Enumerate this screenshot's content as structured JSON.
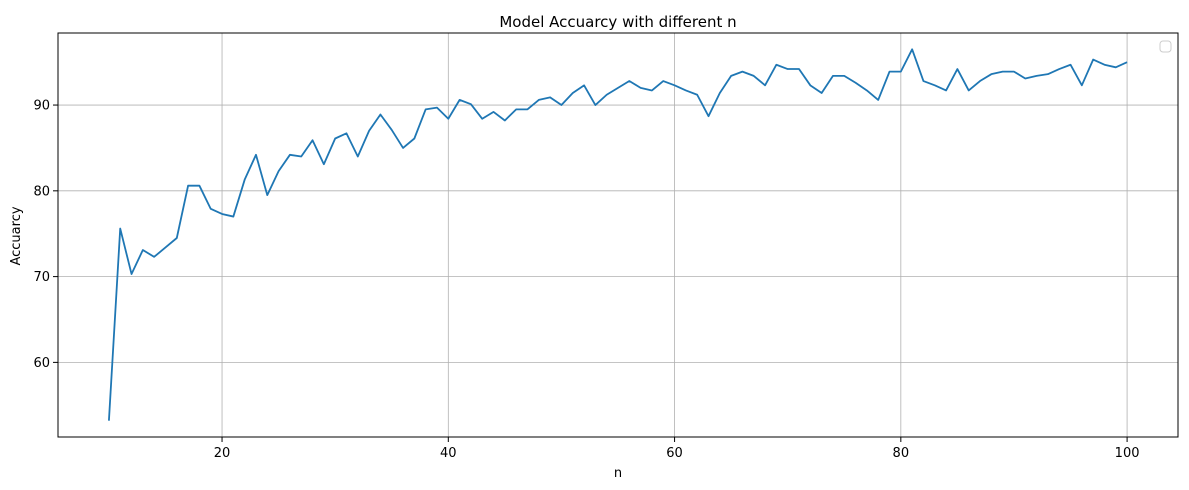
{
  "chart_data": {
    "type": "line",
    "title": "Model Accuarcy with different n",
    "xlabel": "n",
    "ylabel": "Accuarcy",
    "xlim": [
      5.5,
      104.5
    ],
    "ylim": [
      51.3,
      98.4
    ],
    "xticks": [
      20,
      40,
      60,
      80,
      100
    ],
    "yticks": [
      60,
      70,
      80,
      90
    ],
    "grid": true,
    "legend": "upper-right (empty)",
    "colors": {
      "line": "#1f77b4",
      "grid": "#b0b0b0",
      "axes": "#000000"
    },
    "series": [
      {
        "x": [
          10,
          11,
          12,
          13,
          14,
          15,
          16,
          17,
          18,
          19,
          20,
          21,
          22,
          23,
          24,
          25,
          26,
          27,
          28,
          29,
          30,
          31,
          32,
          33,
          34,
          35,
          36,
          37,
          38,
          39,
          40,
          41,
          42,
          43,
          44,
          45,
          46,
          47,
          48,
          49,
          50,
          51,
          52,
          53,
          54,
          55,
          56,
          57,
          58,
          59,
          60,
          61,
          62,
          63,
          64,
          65,
          66,
          67,
          68,
          69,
          70,
          71,
          72,
          73,
          74,
          75,
          76,
          77,
          78,
          79,
          80,
          81,
          82,
          83,
          84,
          85,
          86,
          87,
          88,
          89,
          90,
          91,
          92,
          93,
          94,
          95,
          96,
          97,
          98,
          99,
          100
        ],
        "y": [
          53.2,
          75.6,
          70.3,
          73.1,
          72.3,
          73.4,
          74.5,
          80.6,
          80.6,
          77.9,
          77.3,
          77.0,
          81.3,
          84.2,
          79.5,
          82.3,
          84.2,
          84.0,
          85.9,
          83.1,
          86.1,
          86.7,
          84.0,
          87.0,
          88.9,
          87.1,
          85.0,
          86.1,
          89.5,
          89.7,
          88.4,
          90.6,
          90.1,
          88.4,
          89.2,
          88.2,
          89.5,
          89.5,
          90.6,
          90.9,
          90.0,
          91.4,
          92.3,
          90.0,
          91.2,
          92.0,
          92.8,
          92.0,
          91.7,
          92.8,
          92.3,
          91.7,
          91.2,
          88.7,
          91.4,
          93.4,
          93.9,
          93.4,
          92.3,
          94.7,
          94.2,
          94.2,
          92.3,
          91.4,
          93.4,
          93.4,
          92.6,
          91.7,
          90.6,
          93.9,
          93.9,
          96.5,
          92.8,
          92.3,
          91.7,
          94.2,
          91.7,
          92.8,
          93.6,
          93.9,
          93.9,
          93.1,
          93.4,
          93.6,
          94.2,
          94.7,
          92.3,
          95.3,
          94.7,
          94.4,
          95.0
        ]
      }
    ]
  }
}
